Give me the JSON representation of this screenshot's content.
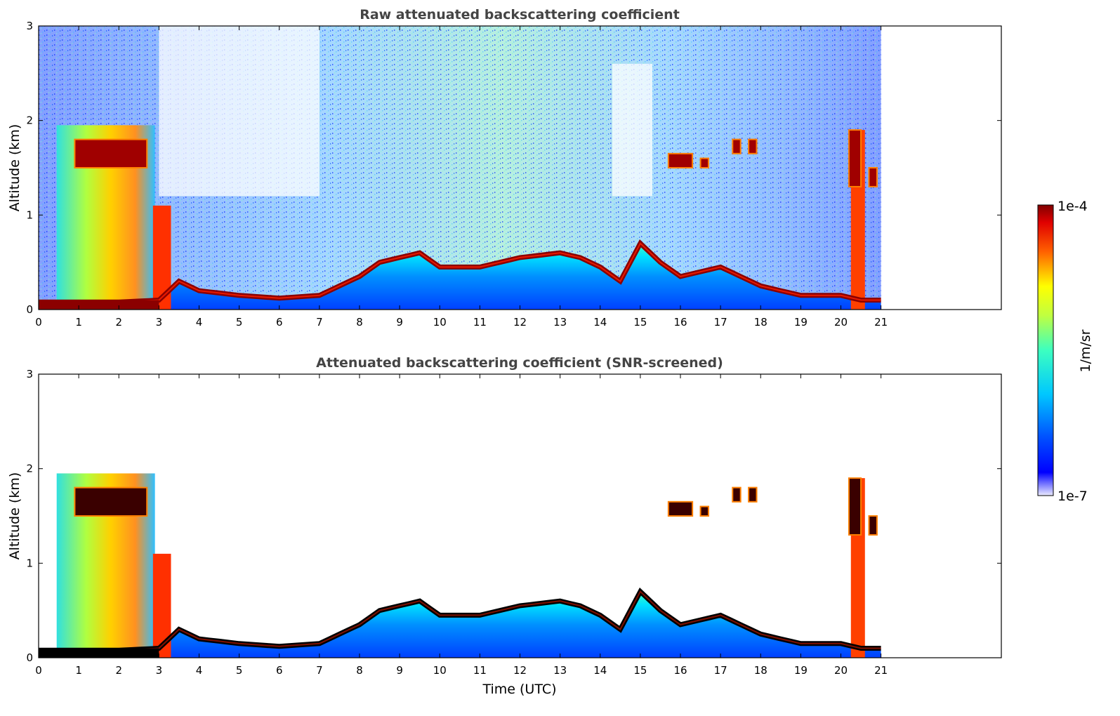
{
  "chart_data": [
    {
      "type": "heatmap",
      "title": "Raw attenuated backscattering coefficient",
      "xlabel": "",
      "ylabel": "Altitude (km)",
      "xlim": [
        0,
        24
      ],
      "ylim": [
        0,
        3
      ],
      "xticks": [
        0,
        1,
        2,
        3,
        4,
        5,
        6,
        7,
        8,
        9,
        10,
        11,
        12,
        13,
        14,
        15,
        16,
        17,
        18,
        19,
        20,
        21
      ],
      "yticks": [
        0,
        1,
        2,
        3
      ],
      "data_end_hour": 21,
      "noise_top_km": 3.0,
      "boundary_layer_top_km": [
        [
          0,
          0.08
        ],
        [
          1,
          0.08
        ],
        [
          2,
          0.08
        ],
        [
          3,
          0.1
        ],
        [
          3.5,
          0.3
        ],
        [
          4,
          0.2
        ],
        [
          5,
          0.15
        ],
        [
          6,
          0.12
        ],
        [
          7,
          0.15
        ],
        [
          8,
          0.35
        ],
        [
          8.5,
          0.5
        ],
        [
          9,
          0.55
        ],
        [
          9.5,
          0.6
        ],
        [
          10,
          0.45
        ],
        [
          11,
          0.45
        ],
        [
          12,
          0.55
        ],
        [
          13,
          0.6
        ],
        [
          13.5,
          0.55
        ],
        [
          14,
          0.45
        ],
        [
          14.5,
          0.3
        ],
        [
          15,
          0.7
        ],
        [
          15.5,
          0.5
        ],
        [
          16,
          0.35
        ],
        [
          17,
          0.45
        ],
        [
          18,
          0.25
        ],
        [
          19,
          0.15
        ],
        [
          20,
          0.15
        ],
        [
          20.5,
          0.1
        ],
        [
          21,
          0.1
        ]
      ],
      "clouds": [
        {
          "x0": 0.9,
          "x1": 2.7,
          "y0": 1.5,
          "y1": 1.8,
          "level": "high"
        },
        {
          "x0": 15.7,
          "x1": 16.3,
          "y0": 1.5,
          "y1": 1.65,
          "level": "high"
        },
        {
          "x0": 16.5,
          "x1": 16.7,
          "y0": 1.5,
          "y1": 1.6,
          "level": "high"
        },
        {
          "x0": 17.3,
          "x1": 17.5,
          "y0": 1.65,
          "y1": 1.8,
          "level": "high"
        },
        {
          "x0": 17.7,
          "x1": 17.9,
          "y0": 1.65,
          "y1": 1.8,
          "level": "high"
        },
        {
          "x0": 20.2,
          "x1": 20.5,
          "y0": 1.3,
          "y1": 1.9,
          "level": "high"
        },
        {
          "x0": 20.7,
          "x1": 20.9,
          "y0": 1.3,
          "y1": 1.5,
          "level": "high"
        }
      ]
    },
    {
      "type": "heatmap",
      "title": "Attenuated backscattering coefficient (SNR-screened)",
      "xlabel": "Time (UTC)",
      "ylabel": "Altitude (km)",
      "xlim": [
        0,
        24
      ],
      "ylim": [
        0,
        3
      ],
      "xticks": [
        0,
        1,
        2,
        3,
        4,
        5,
        6,
        7,
        8,
        9,
        10,
        11,
        12,
        13,
        14,
        15,
        16,
        17,
        18,
        19,
        20,
        21
      ],
      "yticks": [
        0,
        1,
        2,
        3
      ],
      "data_end_hour": 21,
      "noise_top_km": 0
    }
  ],
  "colorbar": {
    "label": "1/m/sr",
    "max_label": "1e-4",
    "min_label": "1e-7",
    "colormap": "jet"
  },
  "colors": {
    "background": "#ffffff",
    "title": "#444444",
    "high": "#8b0000",
    "low": "#0000ff"
  }
}
